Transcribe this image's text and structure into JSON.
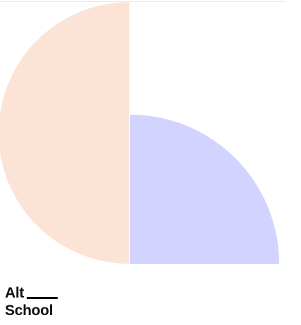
{
  "brand": {
    "line1": "Alt",
    "line2": "School"
  },
  "colors": {
    "half_circle": "#FBE4D6",
    "quarter_circle": "#D2D3FF",
    "logo_text": "#111111"
  }
}
